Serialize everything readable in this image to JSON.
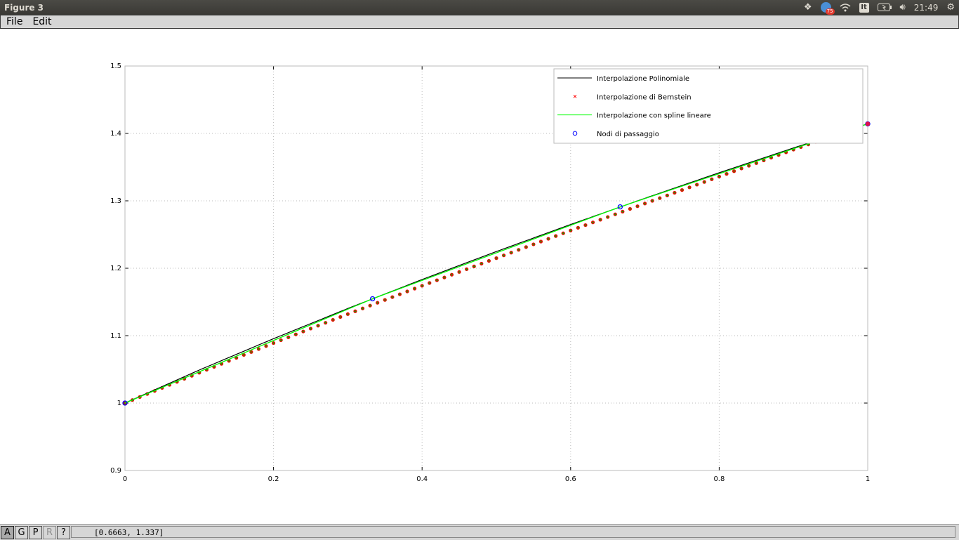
{
  "window": {
    "title": "Figure 3"
  },
  "tray": {
    "notification_count": "75",
    "keyboard_layout": "It",
    "clock": "21:49"
  },
  "menu": {
    "file": "File",
    "edit": "Edit"
  },
  "toolbar": {
    "axes_btn": "A",
    "grid_btn": "G",
    "pan_btn": "P",
    "rotate_btn": "R",
    "help_btn": "?"
  },
  "status": {
    "coordinates": "[0.6663, 1.337]"
  },
  "colors": {
    "poly": "#000000",
    "bernstein": "#ff0000",
    "spline": "#00ff00",
    "nodes": "#0000ff",
    "grid": "#bbbbbb"
  },
  "chart_data": {
    "type": "line",
    "xlim": [
      0,
      1
    ],
    "ylim": [
      0.9,
      1.5
    ],
    "xticks": [
      "0",
      "0.2",
      "0.4",
      "0.6",
      "0.8",
      "1"
    ],
    "yticks": [
      "0.9",
      "1",
      "1.1",
      "1.2",
      "1.3",
      "1.4",
      "1.5"
    ],
    "grid": true,
    "legend_position": "top-right",
    "series": [
      {
        "name": "Interpolazione Polinomiale",
        "style": "line",
        "color": "#000000",
        "x": [
          0,
          0.1,
          0.2,
          0.3,
          0.4,
          0.5,
          0.6,
          0.7,
          0.8,
          0.9,
          1.0
        ],
        "y": [
          1.0,
          1.049,
          1.0955,
          1.1403,
          1.1833,
          1.2248,
          1.2649,
          1.3038,
          1.3417,
          1.3784,
          1.4142
        ]
      },
      {
        "name": "Interpolazione di Bernstein",
        "style": "markers",
        "color": "#ff0000",
        "x": [
          0,
          0.1,
          0.2,
          0.3,
          0.4,
          0.5,
          0.6,
          0.7,
          0.8,
          0.9,
          1.0
        ],
        "y": [
          1.0,
          1.045,
          1.089,
          1.132,
          1.174,
          1.215,
          1.256,
          1.296,
          1.336,
          1.376,
          1.4142
        ]
      },
      {
        "name": "Interpolazione con spline lineare",
        "style": "line",
        "color": "#00ff00",
        "x": [
          0,
          0.3333,
          0.6667,
          1.0
        ],
        "y": [
          1.0,
          1.1547,
          1.291,
          1.4142
        ]
      },
      {
        "name": "Nodi di passaggio",
        "style": "circles",
        "color": "#0000ff",
        "x": [
          0,
          0.3333,
          0.6667,
          1.0
        ],
        "y": [
          1.0,
          1.1547,
          1.291,
          1.4142
        ]
      }
    ]
  }
}
